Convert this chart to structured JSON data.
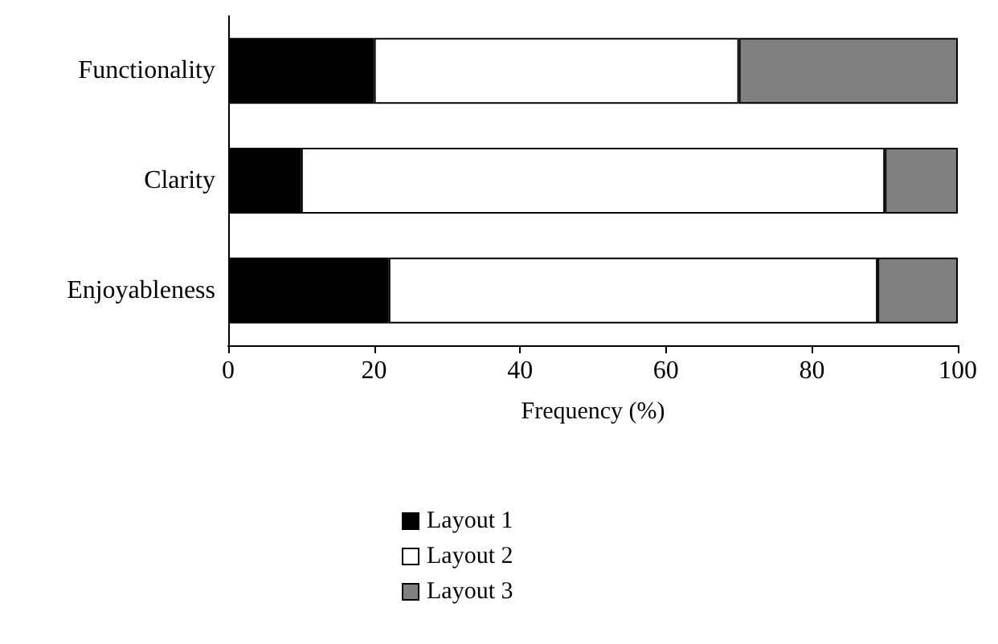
{
  "chart_data": {
    "type": "bar",
    "orientation": "horizontal",
    "stacked": true,
    "xlabel": "Frequency (%)",
    "categories": [
      "Functionality",
      "Clarity",
      "Enjoyableness"
    ],
    "series": [
      {
        "name": "Layout 1",
        "color": "#000000",
        "values": [
          20,
          10,
          22
        ]
      },
      {
        "name": "Layout 2",
        "color": "#ffffff",
        "values": [
          50,
          80,
          67
        ]
      },
      {
        "name": "Layout 3",
        "color": "#808080",
        "values": [
          30,
          10,
          11
        ]
      }
    ],
    "xlim": [
      0,
      100
    ],
    "xticks": [
      0,
      20,
      40,
      60,
      80,
      100
    ],
    "grid": false,
    "legend": "bottom"
  }
}
